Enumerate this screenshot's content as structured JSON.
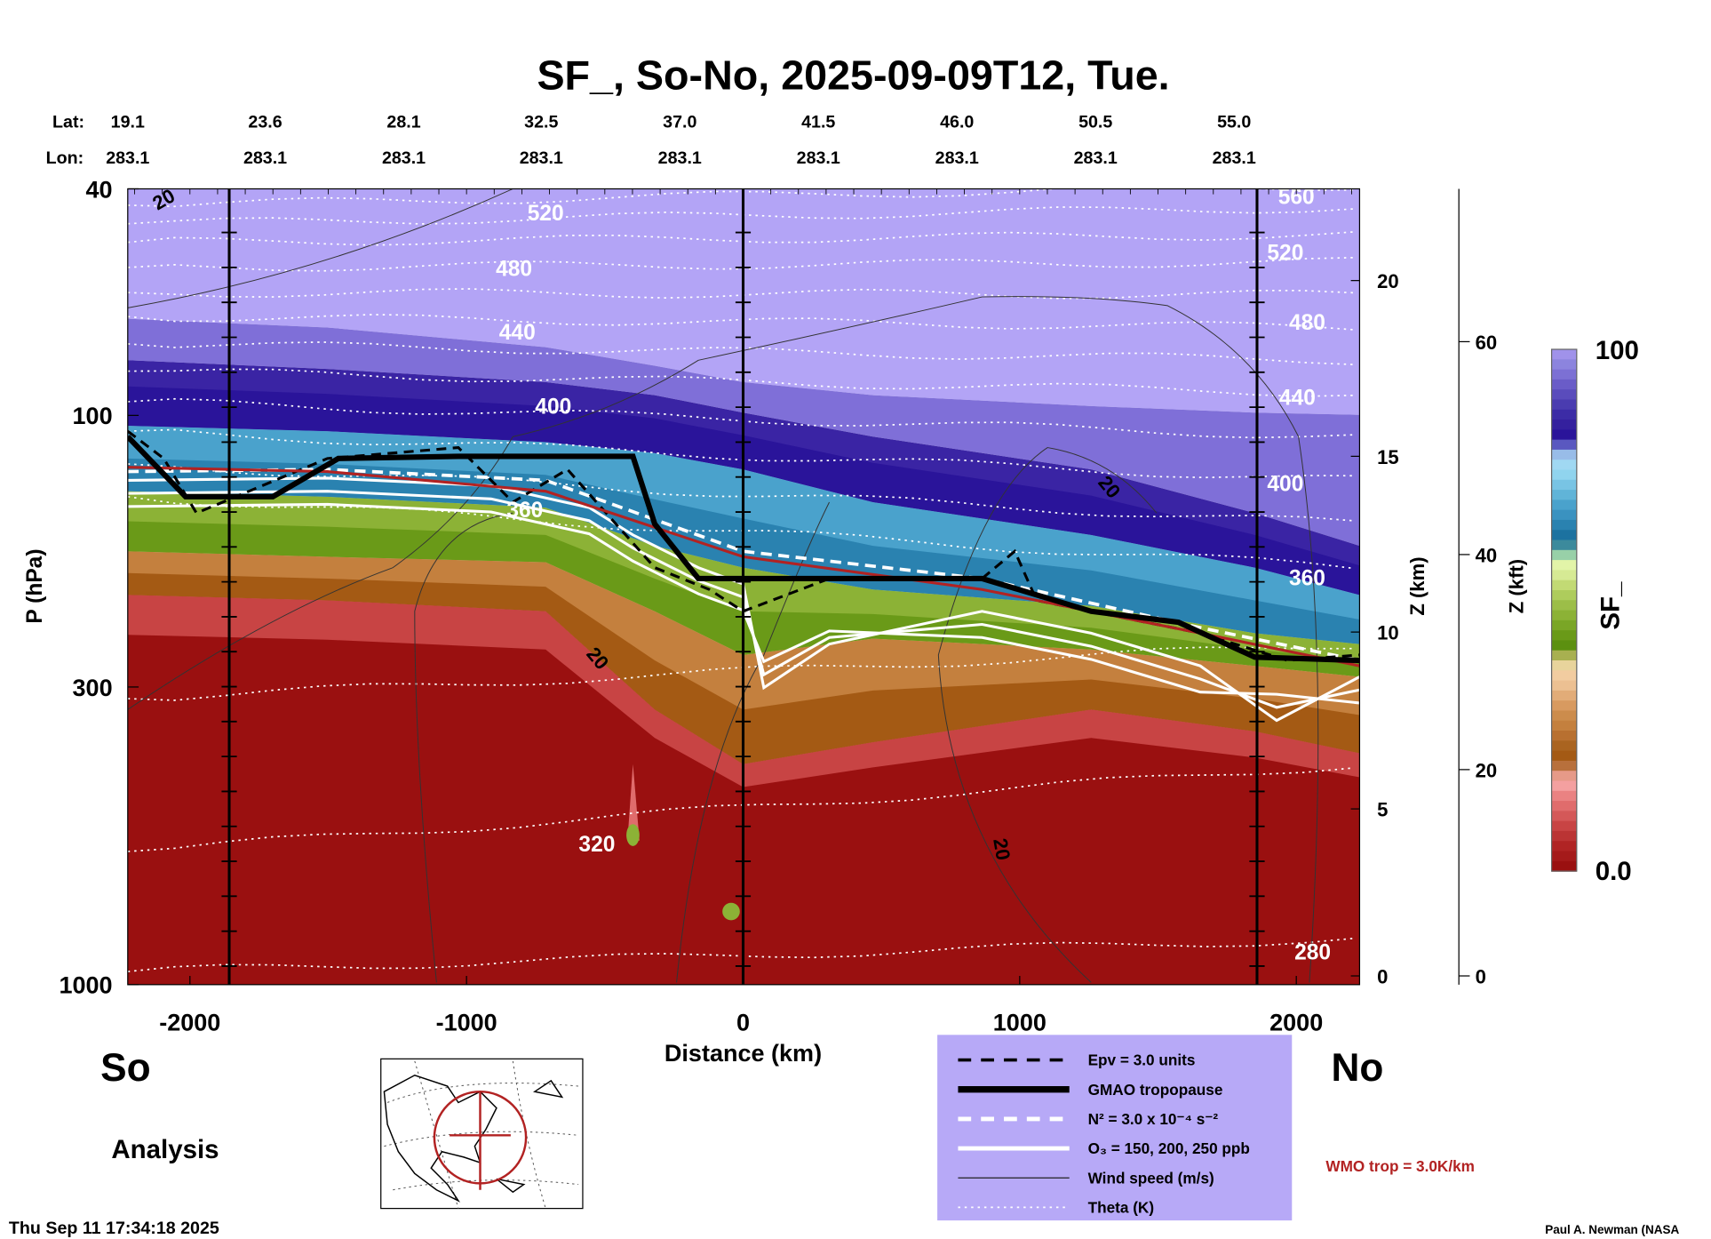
{
  "title": "SF_, So-No, 2025-09-09T12, Tue.",
  "header": {
    "lat_label": "Lat:",
    "lon_label": "Lon:",
    "lats": [
      "19.1",
      "23.6",
      "28.1",
      "32.5",
      "37.0",
      "41.5",
      "46.0",
      "50.5",
      "55.0"
    ],
    "lons": [
      "283.1",
      "283.1",
      "283.1",
      "283.1",
      "283.1",
      "283.1",
      "283.1",
      "283.1",
      "283.1"
    ]
  },
  "chart_data": {
    "type": "heatmap",
    "title": "SF_, So-No, 2025-09-09T12, Tue.",
    "xlabel": "Distance (km)",
    "ylabel": "P (hPa)",
    "xlim": [
      -2230,
      2230
    ],
    "ylim": [
      1000,
      40
    ],
    "x_ticks": [
      -2000,
      -1000,
      0,
      1000,
      2000
    ],
    "x_tick_labels": [
      "-2000",
      "-1000",
      "0",
      "1000",
      "2000"
    ],
    "y_ticks": [
      40,
      100,
      300,
      1000
    ],
    "y_tick_labels": [
      "40",
      "100",
      "300",
      "1000"
    ],
    "right_axis_km": {
      "label": "Z (km)",
      "ticks": [
        "20",
        "15",
        "10",
        "5",
        "0"
      ]
    },
    "right_axis_kft": {
      "label": "Z (kft)",
      "ticks": [
        "60",
        "40",
        "20",
        "0"
      ]
    },
    "colorbar": {
      "label": "SF_",
      "min_label": "0.0",
      "max_label": "100",
      "range": [
        0,
        100
      ]
    },
    "theta_labels": [
      "520",
      "480",
      "440",
      "400",
      "360",
      "320",
      "520",
      "480",
      "440",
      "400",
      "360",
      "280",
      "560"
    ],
    "wind_labels": [
      "20",
      "20",
      "20",
      "20"
    ],
    "left_label": "So",
    "right_label": "No",
    "mode_label": "Analysis"
  },
  "legend": {
    "items": [
      "Epv = 3.0 units",
      "GMAO tropopause",
      "N² = 3.0 x 10⁻⁴ s⁻²",
      "O₃ = 150, 200, 250 ppb",
      "Wind speed (m/s)",
      "Theta (K)"
    ],
    "wmo": "WMO trop = 3.0K/km"
  },
  "footer": {
    "timestamp": "Thu Sep 11 17:34:18 2025",
    "credit": "Paul A. Newman (NASA"
  },
  "colors": {
    "legend_bg": "#b7a9f7",
    "wmo": "#b22222",
    "colorbar": [
      "#9a1010",
      "#a51a1a",
      "#b02424",
      "#bb3434",
      "#c84444",
      "#d45858",
      "#e06c6c",
      "#ea8282",
      "#f4a0a0",
      "#e69a88",
      "#b8703c",
      "#a45a14",
      "#aa6420",
      "#b87030",
      "#c4803e",
      "#cc8c4c",
      "#d89a60",
      "#e2ac78",
      "#ecc092",
      "#f2cca0",
      "#e8d49c",
      "#a8b050",
      "#5c9010",
      "#6a9a18",
      "#7aa626",
      "#8cb236",
      "#9cbe48",
      "#aecc5c",
      "#c2da74",
      "#d6ea94",
      "#e2f4a8",
      "#98d0a8",
      "#3c8a9c",
      "#1c72a0",
      "#2a82b0",
      "#3a92c0",
      "#4aa2cc",
      "#60b4d8",
      "#78c4e4",
      "#90d4ee",
      "#a0d8f2",
      "#98bce8",
      "#5a58c0",
      "#2a149a",
      "#34209e",
      "#3c2ca6",
      "#4a3cb0",
      "#5a4cbc",
      "#6a5cc8",
      "#7c70d4",
      "#8c84de",
      "#a092ea"
    ]
  }
}
